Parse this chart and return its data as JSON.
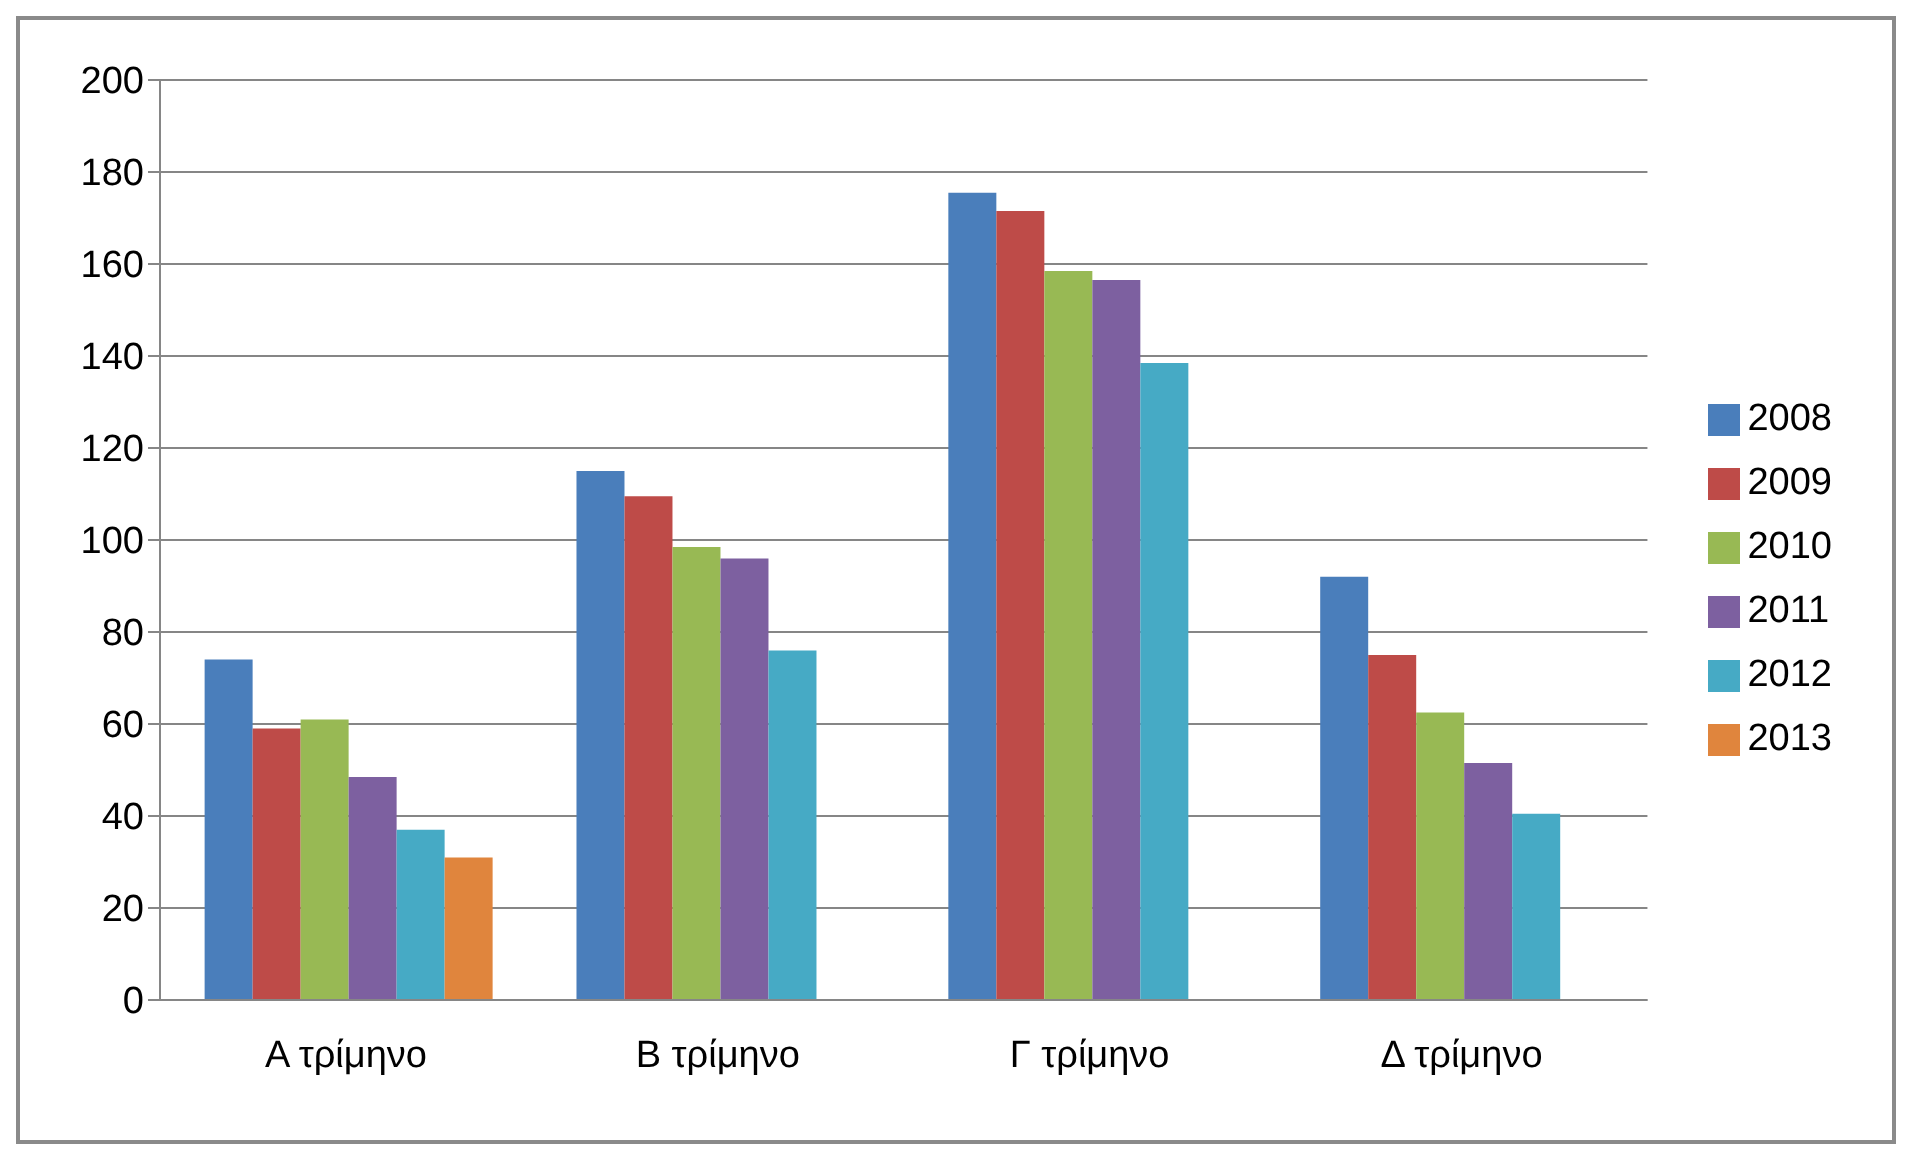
{
  "chart_data": {
    "type": "bar",
    "categories": [
      "Α τρίμηνο",
      "Β τρίμηνο",
      "Γ τρίμηνο",
      "Δ τρίμηνο"
    ],
    "series": [
      {
        "name": "2008",
        "color": "#4a7ebb",
        "values": [
          74,
          115,
          175.5,
          92
        ]
      },
      {
        "name": "2009",
        "color": "#be4b48",
        "values": [
          59,
          109.5,
          171.5,
          75
        ]
      },
      {
        "name": "2010",
        "color": "#98b954",
        "values": [
          61,
          98.5,
          158.5,
          62.5
        ]
      },
      {
        "name": "2011",
        "color": "#7d60a0",
        "values": [
          48.5,
          96,
          156.5,
          51.5
        ]
      },
      {
        "name": "2012",
        "color": "#46aac5",
        "values": [
          37,
          76,
          138.5,
          40.5
        ]
      },
      {
        "name": "2013",
        "color": "#e0853d",
        "values": [
          31,
          null,
          null,
          null
        ]
      }
    ],
    "ylim": [
      0,
      200
    ],
    "yticks": [
      0,
      20,
      40,
      60,
      80,
      100,
      120,
      140,
      160,
      180,
      200
    ],
    "grid": "y",
    "legend": "right"
  }
}
